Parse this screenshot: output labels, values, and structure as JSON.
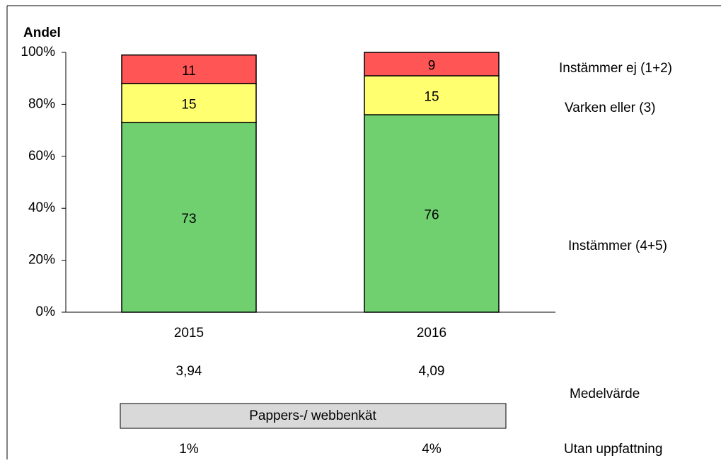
{
  "chart_data": {
    "type": "stacked_bar",
    "ylabel": "Andel",
    "categories": [
      "2015",
      "2016"
    ],
    "series": [
      {
        "name": "Instämmer (4+5)",
        "color": "#70d070",
        "values": [
          73,
          76
        ]
      },
      {
        "name": "Varken eller (3)",
        "color": "#ffff70",
        "values": [
          15,
          15
        ]
      },
      {
        "name": "Instämmer ej (1+2)",
        "color": "#ff5555",
        "values": [
          11,
          9
        ]
      }
    ],
    "ylim": [
      0,
      100
    ],
    "yticks": [
      {
        "value": 0,
        "label": "0%"
      },
      {
        "value": 20,
        "label": "20%"
      },
      {
        "value": 40,
        "label": "40%"
      },
      {
        "value": 60,
        "label": "60%"
      },
      {
        "value": 80,
        "label": "80%"
      },
      {
        "value": 100,
        "label": "100%"
      }
    ],
    "mean_row": {
      "label": "Medelvärde",
      "values": [
        "3,94",
        "4,09"
      ]
    },
    "method_box": "Pappers-/ webbenkät",
    "no_opinion_row": {
      "label": "Utan uppfattning",
      "values": [
        "1%",
        "4%"
      ]
    }
  }
}
